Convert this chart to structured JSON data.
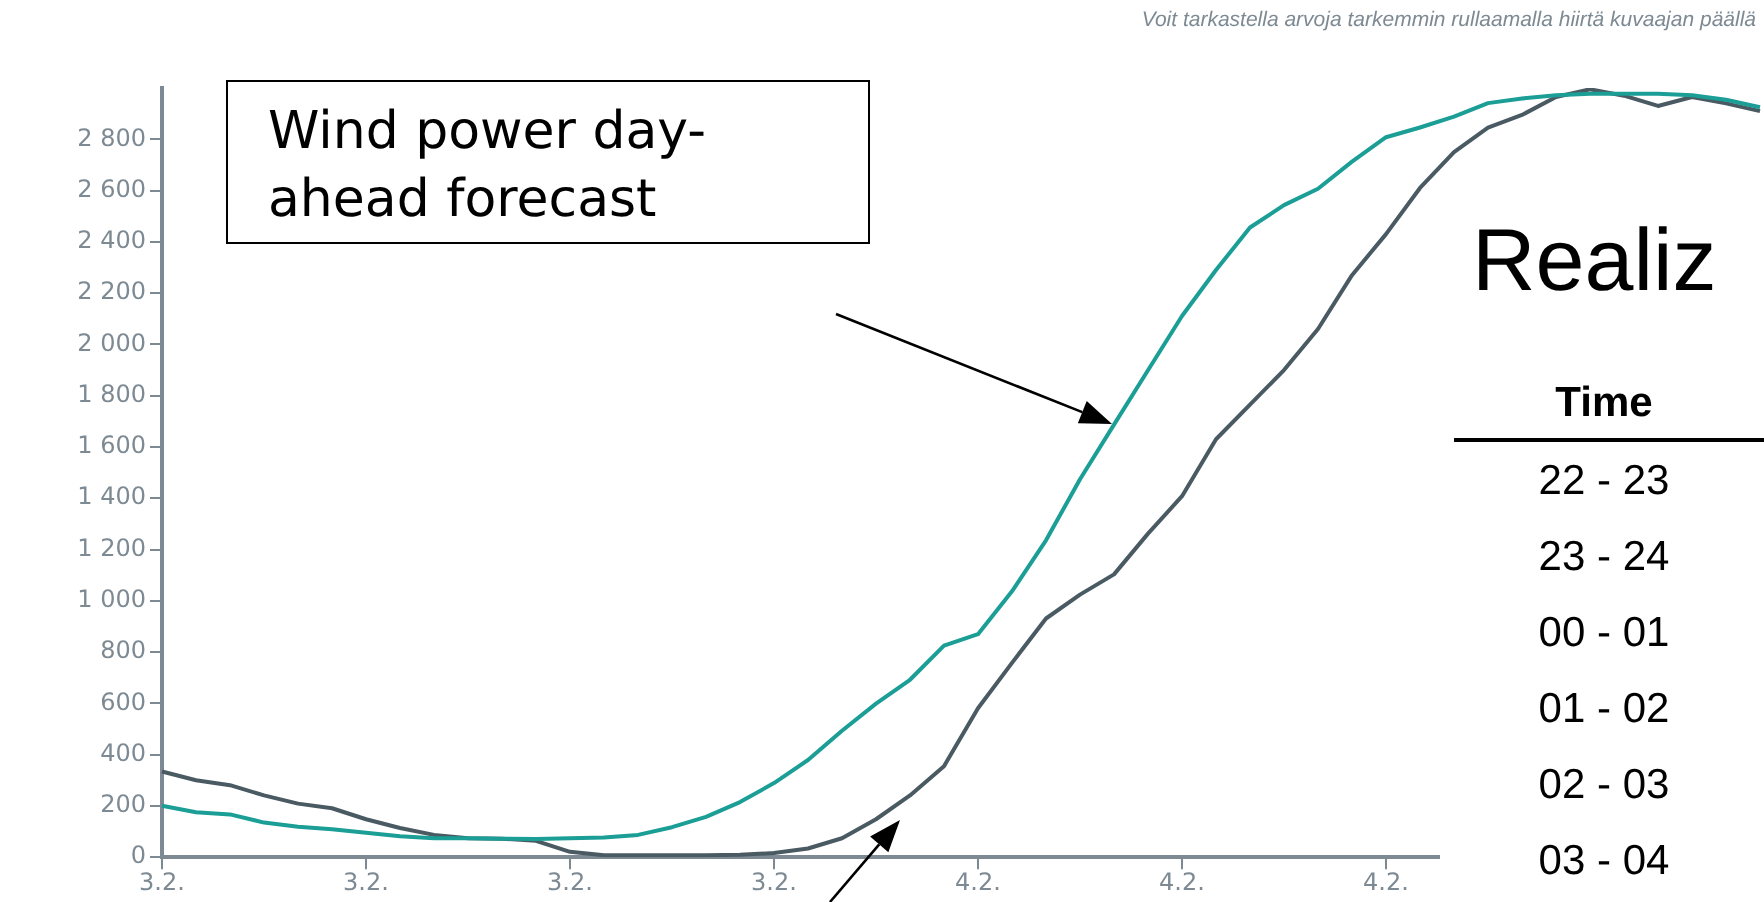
{
  "chart_data": {
    "type": "line",
    "categories": [
      "3.2.",
      null,
      null,
      null,
      null,
      null,
      "3.2.",
      null,
      null,
      null,
      null,
      null,
      "3.2.",
      null,
      null,
      null,
      null,
      null,
      "3.2.",
      null,
      null,
      null,
      null,
      null,
      "4.2.",
      null,
      null,
      null,
      null,
      null,
      "4.2.",
      null,
      null,
      null,
      null,
      null,
      "4.2.",
      null,
      null,
      null,
      null,
      null,
      null,
      null,
      null,
      null,
      null,
      null
    ],
    "series": [
      {
        "color": "#1a9e96",
        "values": [
          201,
          175,
          167,
          135,
          119,
          109,
          95,
          82,
          74,
          74,
          72,
          71,
          74,
          77,
          87,
          117,
          157,
          215,
          289,
          379,
          493,
          599,
          692,
          825,
          870,
          1037,
          1236,
          1474,
          1687,
          1899,
          2111,
          2290,
          2456,
          2543,
          2607,
          2713,
          2808,
          2846,
          2888,
          2941,
          2959,
          2972,
          2978,
          2978,
          2978,
          2972,
          2954,
          2925
        ]
      },
      {
        "color": "#4a5a63",
        "values": [
          334,
          300,
          281,
          241,
          209,
          191,
          148,
          114,
          87,
          74,
          72,
          64,
          21,
          8,
          8,
          8,
          8,
          10,
          16,
          34,
          74,
          148,
          241,
          355,
          581,
          758,
          931,
          1024,
          1103,
          1262,
          1408,
          1630,
          1765,
          1900,
          2060,
          2270,
          2430,
          2610,
          2750,
          2845,
          2895,
          2965,
          2995,
          2970,
          2930,
          2965,
          2940,
          2910
        ]
      }
    ],
    "ylim": [
      0,
      3000
    ],
    "yticks": [
      0,
      200,
      400,
      600,
      800,
      {
        "value": 1000,
        "label": "1 000"
      },
      {
        "value": 1200,
        "label": "1 200"
      },
      {
        "value": 1400,
        "label": "1 400"
      },
      {
        "value": 1600,
        "label": "1 600"
      },
      {
        "value": 1800,
        "label": "1 800"
      },
      {
        "value": 2000,
        "label": "2 000"
      },
      {
        "value": 2200,
        "label": "2 200"
      },
      {
        "value": 2400,
        "label": "2 400"
      },
      {
        "value": 2600,
        "label": "2 600"
      },
      {
        "value": 2800,
        "label": "2 800"
      }
    ],
    "grid": false,
    "legend": false,
    "annotations": [
      "Voit tarkastella arvoja tarkemmin rullaamalla hiirtä kuvaajan päällä",
      "Wind power day-ahead forecast",
      "Realiz",
      "Time",
      "22 - 23",
      "23 - 24",
      "00 - 01",
      "01 - 02",
      "02 - 03",
      "03 - 04"
    ]
  }
}
